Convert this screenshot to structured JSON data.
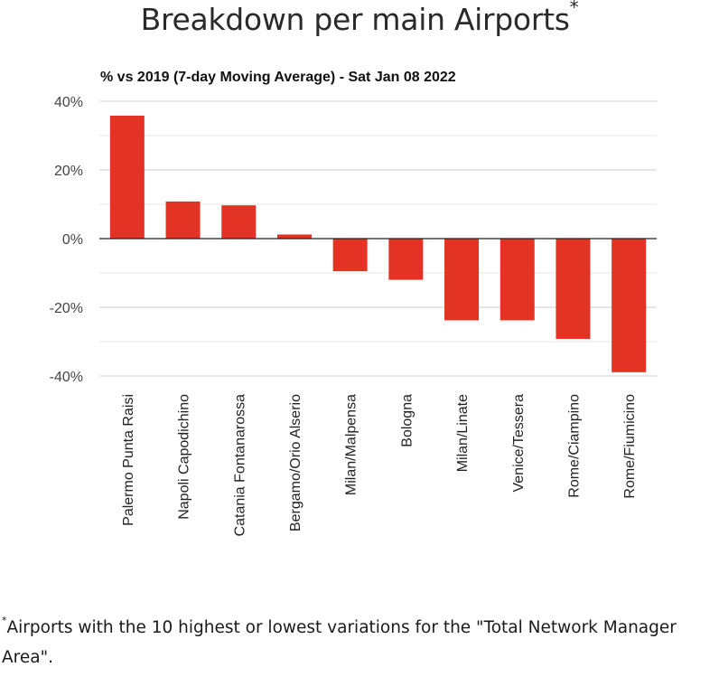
{
  "header": {
    "title": "Breakdown per main Airports",
    "title_marker": "*"
  },
  "footnote": {
    "marker": "*",
    "text": "Airports with the 10 highest or lowest variations for the \"Total Network Manager Area\"."
  },
  "colors": {
    "bar": "#e33325",
    "gridline": "#cccccc",
    "minor_gridline": "#e6e6e6",
    "zero_line": "#222222",
    "axis_text": "#444444"
  },
  "chart_data": {
    "type": "bar",
    "title": "% vs 2019 (7-day Moving Average) - Sat Jan 08 2022",
    "xlabel": "",
    "ylabel": "",
    "ylim": [
      -40,
      40
    ],
    "yticks": [
      40,
      20,
      0,
      -20,
      -40
    ],
    "ytick_labels": [
      "40%",
      "20%",
      "0%",
      "-20%",
      "-40%"
    ],
    "minor_gridlines": [
      30,
      10,
      -10,
      -30
    ],
    "grid": true,
    "legend": "none",
    "categories": [
      "Palermo Punta Raisi",
      "Napoli Capodichino",
      "Catania Fontanarossa",
      "Bergamo/Orio Alserio",
      "Milan/Malpensa",
      "Bologna",
      "Milan/Linate",
      "Venice/Tessera",
      "Rome/Ciampino",
      "Rome/Fiumicino"
    ],
    "values": [
      35.8,
      10.8,
      9.7,
      1.2,
      -9.5,
      -12.0,
      -23.8,
      -23.8,
      -29.2,
      -38.9
    ]
  }
}
